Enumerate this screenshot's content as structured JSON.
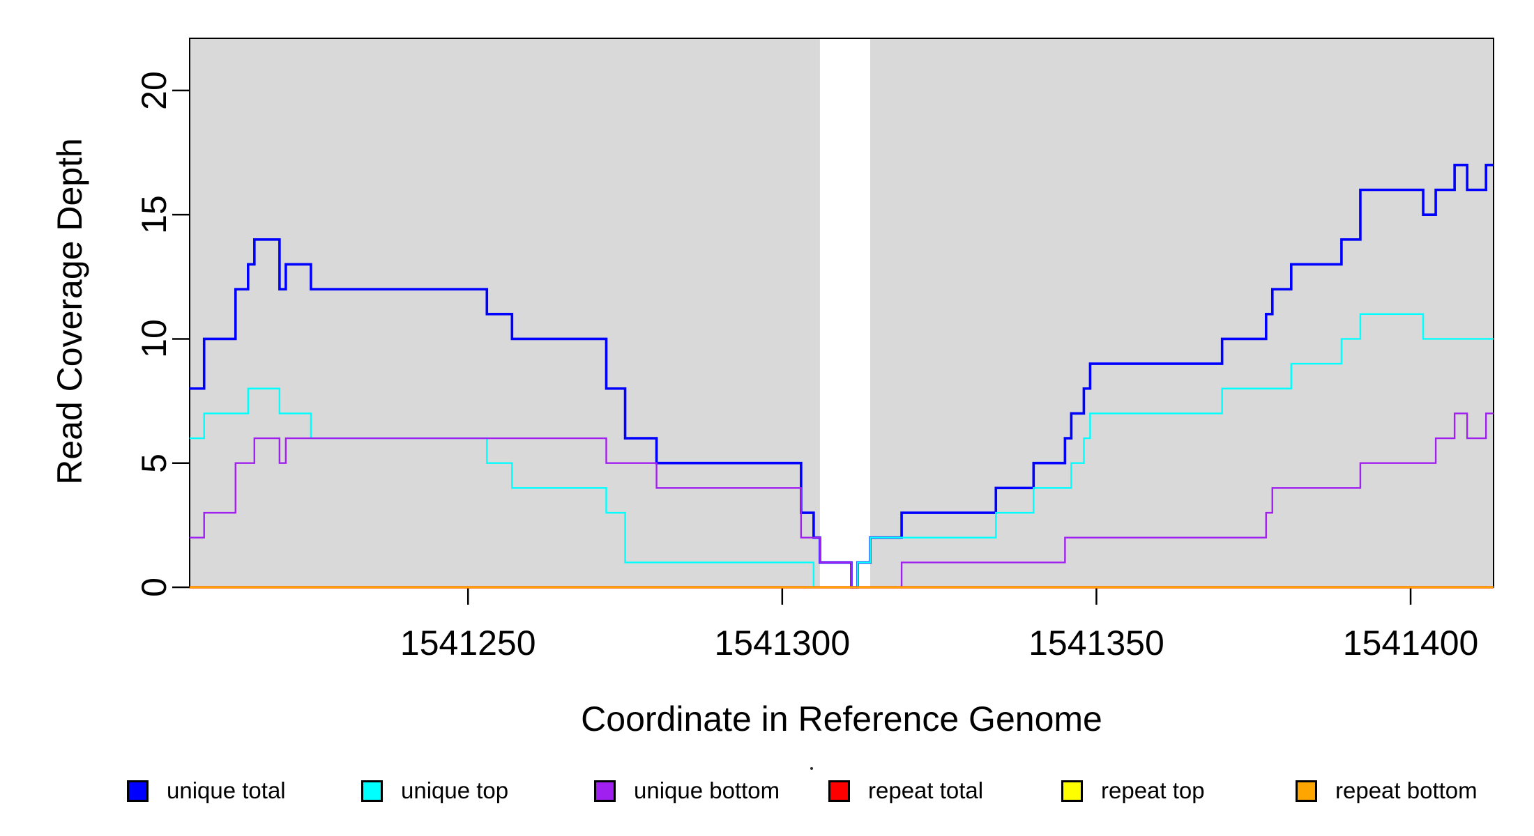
{
  "chart_data": {
    "type": "line",
    "subtype": "step",
    "title": "",
    "xlabel": "Coordinate in Reference Genome",
    "ylabel": "Read Coverage Depth",
    "xlim": [
      1541205.7,
      1541413.2
    ],
    "ylim": [
      0,
      22.1
    ],
    "x_ticks": [
      1541250,
      1541300,
      1541350,
      1541400
    ],
    "y_ticks": [
      0,
      5,
      10,
      15,
      20
    ],
    "grid": false,
    "plot_background": "#d9d9d9",
    "gap_band": {
      "x_start": 1541306,
      "x_end": 1541314,
      "color": "#ffffff"
    },
    "axis_color": "#000000",
    "legend_position": "bottom",
    "series": [
      {
        "name": "unique total",
        "color": "#0000ff",
        "line_width": 3.6,
        "points": [
          [
            1541206,
            8
          ],
          [
            1541208,
            10
          ],
          [
            1541213,
            12
          ],
          [
            1541215,
            13
          ],
          [
            1541216,
            14
          ],
          [
            1541220,
            12
          ],
          [
            1541221,
            13
          ],
          [
            1541225,
            12
          ],
          [
            1541253,
            11
          ],
          [
            1541257,
            10
          ],
          [
            1541272,
            8
          ],
          [
            1541275,
            6
          ],
          [
            1541280,
            5
          ],
          [
            1541303,
            3
          ],
          [
            1541305,
            2
          ],
          [
            1541306,
            1
          ],
          [
            1541311,
            0
          ],
          [
            1541312,
            1
          ],
          [
            1541314,
            2
          ],
          [
            1541319,
            3
          ],
          [
            1541334,
            4
          ],
          [
            1541340,
            5
          ],
          [
            1541345,
            6
          ],
          [
            1541346,
            7
          ],
          [
            1541348,
            8
          ],
          [
            1541349,
            9
          ],
          [
            1541370,
            10
          ],
          [
            1541377,
            11
          ],
          [
            1541378,
            12
          ],
          [
            1541381,
            13
          ],
          [
            1541389,
            14
          ],
          [
            1541392,
            16
          ],
          [
            1541402,
            15
          ],
          [
            1541404,
            16
          ],
          [
            1541407,
            17
          ],
          [
            1541409,
            16
          ],
          [
            1541412,
            17
          ]
        ]
      },
      {
        "name": "unique top",
        "color": "#00ffff",
        "line_width": 2.4,
        "points": [
          [
            1541206,
            6
          ],
          [
            1541208,
            7
          ],
          [
            1541215,
            8
          ],
          [
            1541220,
            7
          ],
          [
            1541225,
            6
          ],
          [
            1541253,
            5
          ],
          [
            1541257,
            4
          ],
          [
            1541272,
            3
          ],
          [
            1541275,
            1
          ],
          [
            1541305,
            0
          ],
          [
            1541312,
            1
          ],
          [
            1541314,
            2
          ],
          [
            1541334,
            3
          ],
          [
            1541340,
            4
          ],
          [
            1541346,
            5
          ],
          [
            1541348,
            6
          ],
          [
            1541349,
            7
          ],
          [
            1541370,
            8
          ],
          [
            1541381,
            9
          ],
          [
            1541389,
            10
          ],
          [
            1541392,
            11
          ],
          [
            1541402,
            10
          ]
        ]
      },
      {
        "name": "unique bottom",
        "color": "#a020f0",
        "line_width": 2.4,
        "points": [
          [
            1541206,
            2
          ],
          [
            1541208,
            3
          ],
          [
            1541213,
            5
          ],
          [
            1541216,
            6
          ],
          [
            1541220,
            5
          ],
          [
            1541221,
            6
          ],
          [
            1541272,
            5
          ],
          [
            1541280,
            4
          ],
          [
            1541303,
            2
          ],
          [
            1541306,
            1
          ],
          [
            1541311,
            0
          ],
          [
            1541319,
            1
          ],
          [
            1541345,
            2
          ],
          [
            1541377,
            3
          ],
          [
            1541378,
            4
          ],
          [
            1541392,
            5
          ],
          [
            1541404,
            6
          ],
          [
            1541407,
            7
          ],
          [
            1541409,
            6
          ],
          [
            1541412,
            7
          ]
        ]
      },
      {
        "name": "repeat total",
        "color": "#ff0000",
        "line_width": 3.6,
        "points": [
          [
            1541206,
            0
          ]
        ]
      },
      {
        "name": "repeat top",
        "color": "#ffff00",
        "line_width": 2.4,
        "points": [
          [
            1541206,
            0
          ]
        ]
      },
      {
        "name": "repeat bottom",
        "color": "#ffa500",
        "line_width": 2.8,
        "points": [
          [
            1541206,
            0
          ]
        ]
      }
    ],
    "legend": {
      "items": [
        {
          "label": "unique total",
          "color": "#0000ff"
        },
        {
          "label": "unique top",
          "color": "#00ffff"
        },
        {
          "label": "unique bottom",
          "color": "#a020f0"
        },
        {
          "label": "repeat total",
          "color": "#ff0000"
        },
        {
          "label": "repeat top",
          "color": "#ffff00"
        },
        {
          "label": "repeat bottom",
          "color": "#ffa500"
        }
      ]
    }
  }
}
